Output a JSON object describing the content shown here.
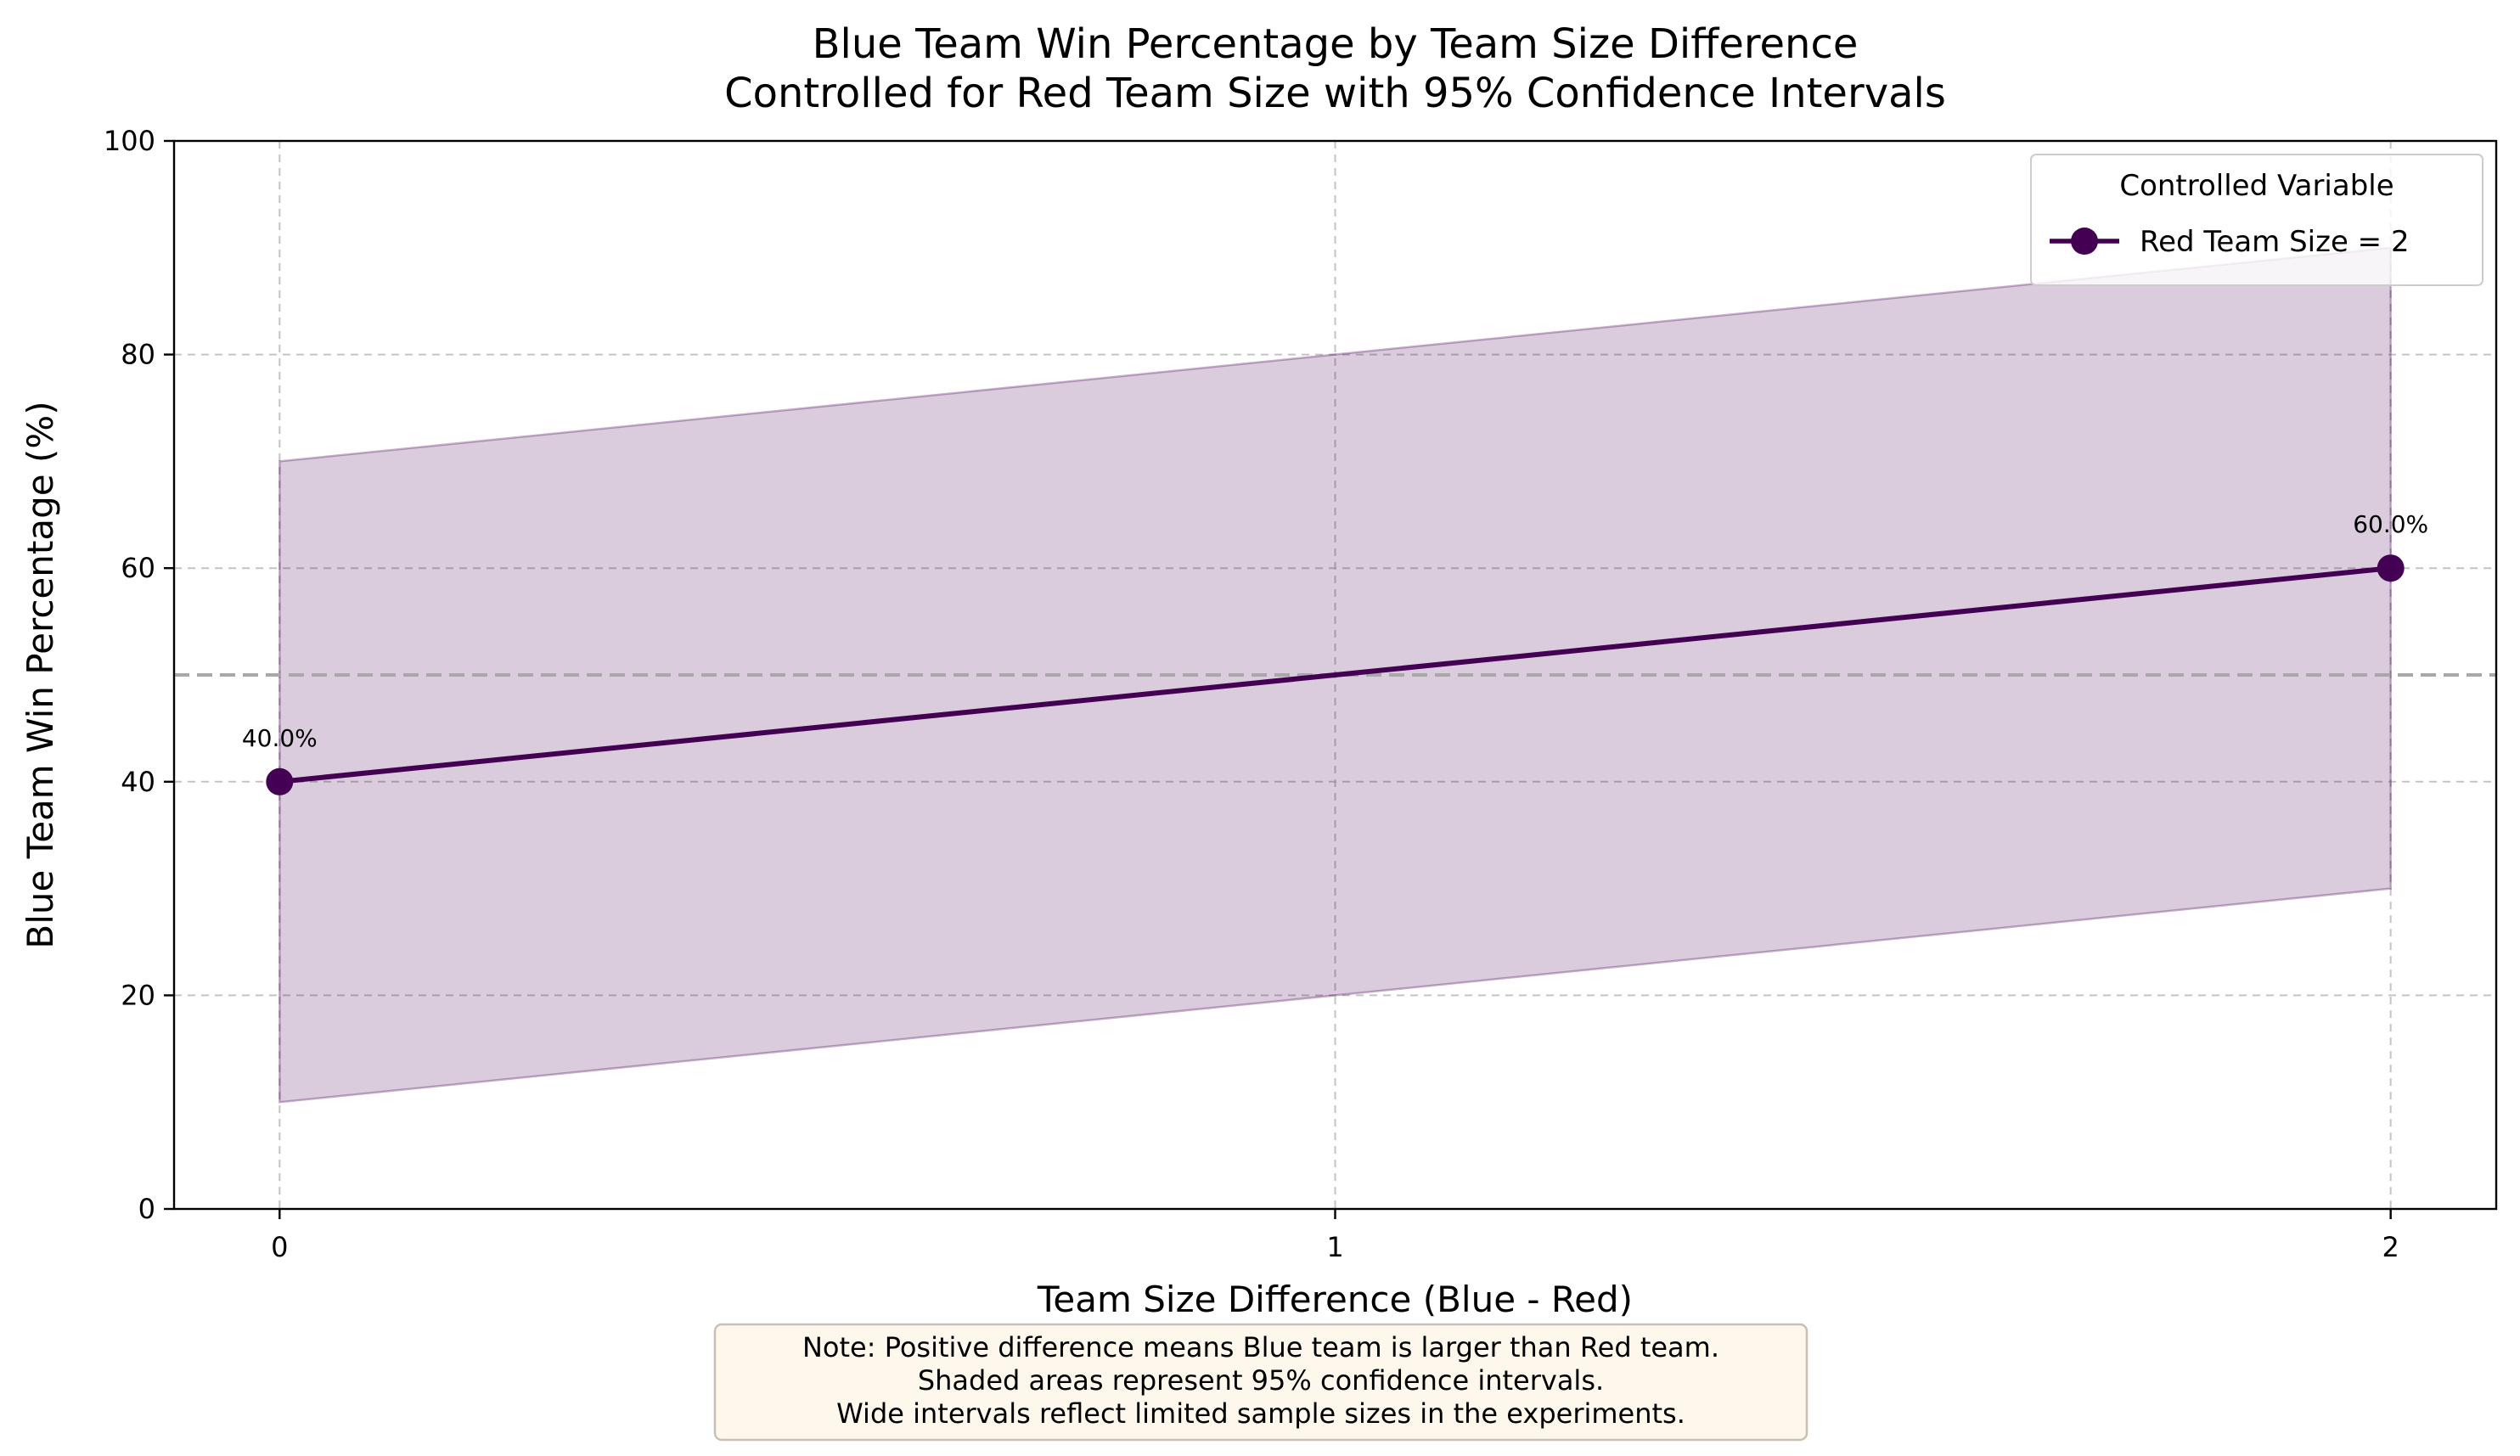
{
  "chart_data": {
    "type": "line",
    "title": "Blue Team Win Percentage by Team Size Difference\nControlled for Red Team Size with 95% Confidence Intervals",
    "xlabel": "Team Size Difference (Blue - Red)",
    "ylabel": "Blue Team Win Percentage (%)",
    "xlim": [
      -0.1,
      2.1
    ],
    "ylim": [
      0,
      100
    ],
    "xticks": [
      0,
      1,
      2
    ],
    "yticks": [
      0,
      20,
      40,
      60,
      80,
      100
    ],
    "grid": true,
    "reference_line": {
      "y": 50,
      "style": "dashed"
    },
    "legend": {
      "title": "Controlled Variable",
      "placement": "top-right"
    },
    "series": [
      {
        "name": "Red Team Size = 2",
        "color": "#440154",
        "x": [
          0,
          2
        ],
        "y": [
          40,
          60
        ],
        "ci_lower": [
          10,
          30
        ],
        "ci_upper": [
          70,
          90
        ],
        "data_labels": [
          "40.0%",
          "60.0%"
        ]
      }
    ],
    "note": [
      "Note: Positive difference means Blue team is larger than Red team.",
      "Shaded areas represent 95% confidence intervals.",
      "Wide intervals reflect limited sample sizes in the experiments."
    ]
  }
}
